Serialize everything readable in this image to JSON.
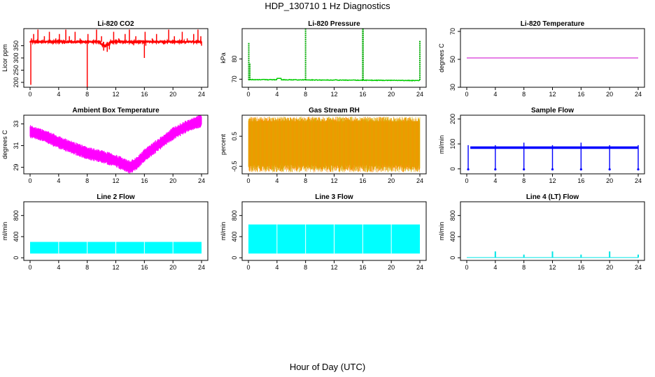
{
  "title": "HDP_130710  1 Hz Diagnostics",
  "xlabel": "Hour of Day (UTC)",
  "chart_data": [
    {
      "type": "line",
      "title": "Li-820 CO2",
      "ylabel": "Licor ppm",
      "xlim": [
        0,
        24
      ],
      "ylim": [
        180,
        420
      ],
      "xticks": [
        0,
        4,
        8,
        12,
        16,
        20,
        24
      ],
      "yticks": [
        200,
        250,
        300,
        350
      ],
      "ytick_labels": [
        "200",
        "250",
        "300",
        "350"
      ],
      "color": "#ff0000",
      "style": "co2"
    },
    {
      "type": "line",
      "title": "Li-820 Pressure",
      "ylabel": "kPa",
      "xlim": [
        0,
        24
      ],
      "ylim": [
        66,
        95
      ],
      "xticks": [
        0,
        4,
        8,
        12,
        16,
        20,
        24
      ],
      "yticks": [
        70,
        80
      ],
      "ytick_labels": [
        "70",
        "80"
      ],
      "color": "#00cc00",
      "style": "pressure"
    },
    {
      "type": "line",
      "title": "Li-820 Temperature",
      "ylabel": "degrees C",
      "xlim": [
        0,
        24
      ],
      "ylim": [
        30,
        72
      ],
      "xticks": [
        0,
        4,
        8,
        12,
        16,
        20,
        24
      ],
      "yticks": [
        30,
        50,
        70
      ],
      "ytick_labels": [
        "30",
        "50",
        "70"
      ],
      "color": "#cc00cc",
      "style": "flat",
      "level": 51
    },
    {
      "type": "area",
      "title": "Ambient Box Temperature",
      "ylabel": "degrees C",
      "xlim": [
        0,
        24
      ],
      "ylim": [
        28.4,
        33.8
      ],
      "xticks": [
        0,
        4,
        8,
        12,
        16,
        20,
        24
      ],
      "yticks": [
        29,
        31,
        33
      ],
      "ytick_labels": [
        "29",
        "31",
        "33"
      ],
      "color": "#ff00ff",
      "style": "ambient",
      "series": [
        {
          "name": "mean",
          "x": [
            0,
            2,
            4,
            6,
            8,
            10,
            12,
            14,
            15,
            16,
            18,
            20,
            22,
            24
          ],
          "values": [
            32.3,
            31.9,
            31.3,
            30.8,
            30.3,
            30.0,
            29.6,
            29.0,
            29.4,
            30.1,
            31.1,
            32.1,
            32.8,
            33.3
          ]
        }
      ]
    },
    {
      "type": "area",
      "title": "Gas Stream RH",
      "ylabel": "percent",
      "xlim": [
        0,
        24
      ],
      "ylim": [
        -0.75,
        1.2
      ],
      "xticks": [
        0,
        4,
        8,
        12,
        16,
        20,
        24
      ],
      "yticks": [
        -0.5,
        0.5
      ],
      "ytick_labels": [
        "-0.5",
        "0.5"
      ],
      "color": "#e6a000",
      "style": "rh"
    },
    {
      "type": "line",
      "title": "Sample Flow",
      "ylabel": "ml/min",
      "xlim": [
        0,
        24
      ],
      "ylim": [
        -20,
        215
      ],
      "xticks": [
        0,
        4,
        8,
        12,
        16,
        20,
        24
      ],
      "yticks": [
        0,
        100,
        200
      ],
      "ytick_labels": [
        "0",
        "100",
        "200"
      ],
      "color": "#0000ff",
      "style": "sample",
      "level": 85
    },
    {
      "type": "area",
      "title": "Line 2 Flow",
      "ylabel": "ml/min",
      "xlim": [
        0,
        24
      ],
      "ylim": [
        -50,
        1060
      ],
      "xticks": [
        0,
        4,
        8,
        12,
        16,
        20,
        24
      ],
      "yticks": [
        0,
        400,
        800
      ],
      "ytick_labels": [
        "0",
        "400",
        "800"
      ],
      "color": "#00ffff",
      "style": "band",
      "low": 80,
      "high": 300
    },
    {
      "type": "area",
      "title": "Line 3 Flow",
      "ylabel": "ml/min",
      "xlim": [
        0,
        24
      ],
      "ylim": [
        -50,
        1060
      ],
      "xticks": [
        0,
        4,
        8,
        12,
        16,
        20,
        24
      ],
      "yticks": [
        0,
        400,
        800
      ],
      "ytick_labels": [
        "0",
        "400",
        "800"
      ],
      "color": "#00ffff",
      "style": "band",
      "low": 80,
      "high": 630
    },
    {
      "type": "line",
      "title": "Line 4 (LT) Flow",
      "ylabel": "ml/min",
      "xlim": [
        0,
        24
      ],
      "ylim": [
        -50,
        1060
      ],
      "xticks": [
        0,
        4,
        8,
        12,
        16,
        20,
        24
      ],
      "yticks": [
        0,
        400,
        800
      ],
      "ytick_labels": [
        "0",
        "400",
        "800"
      ],
      "color": "#00e5e5",
      "style": "lt",
      "level": 5
    }
  ]
}
